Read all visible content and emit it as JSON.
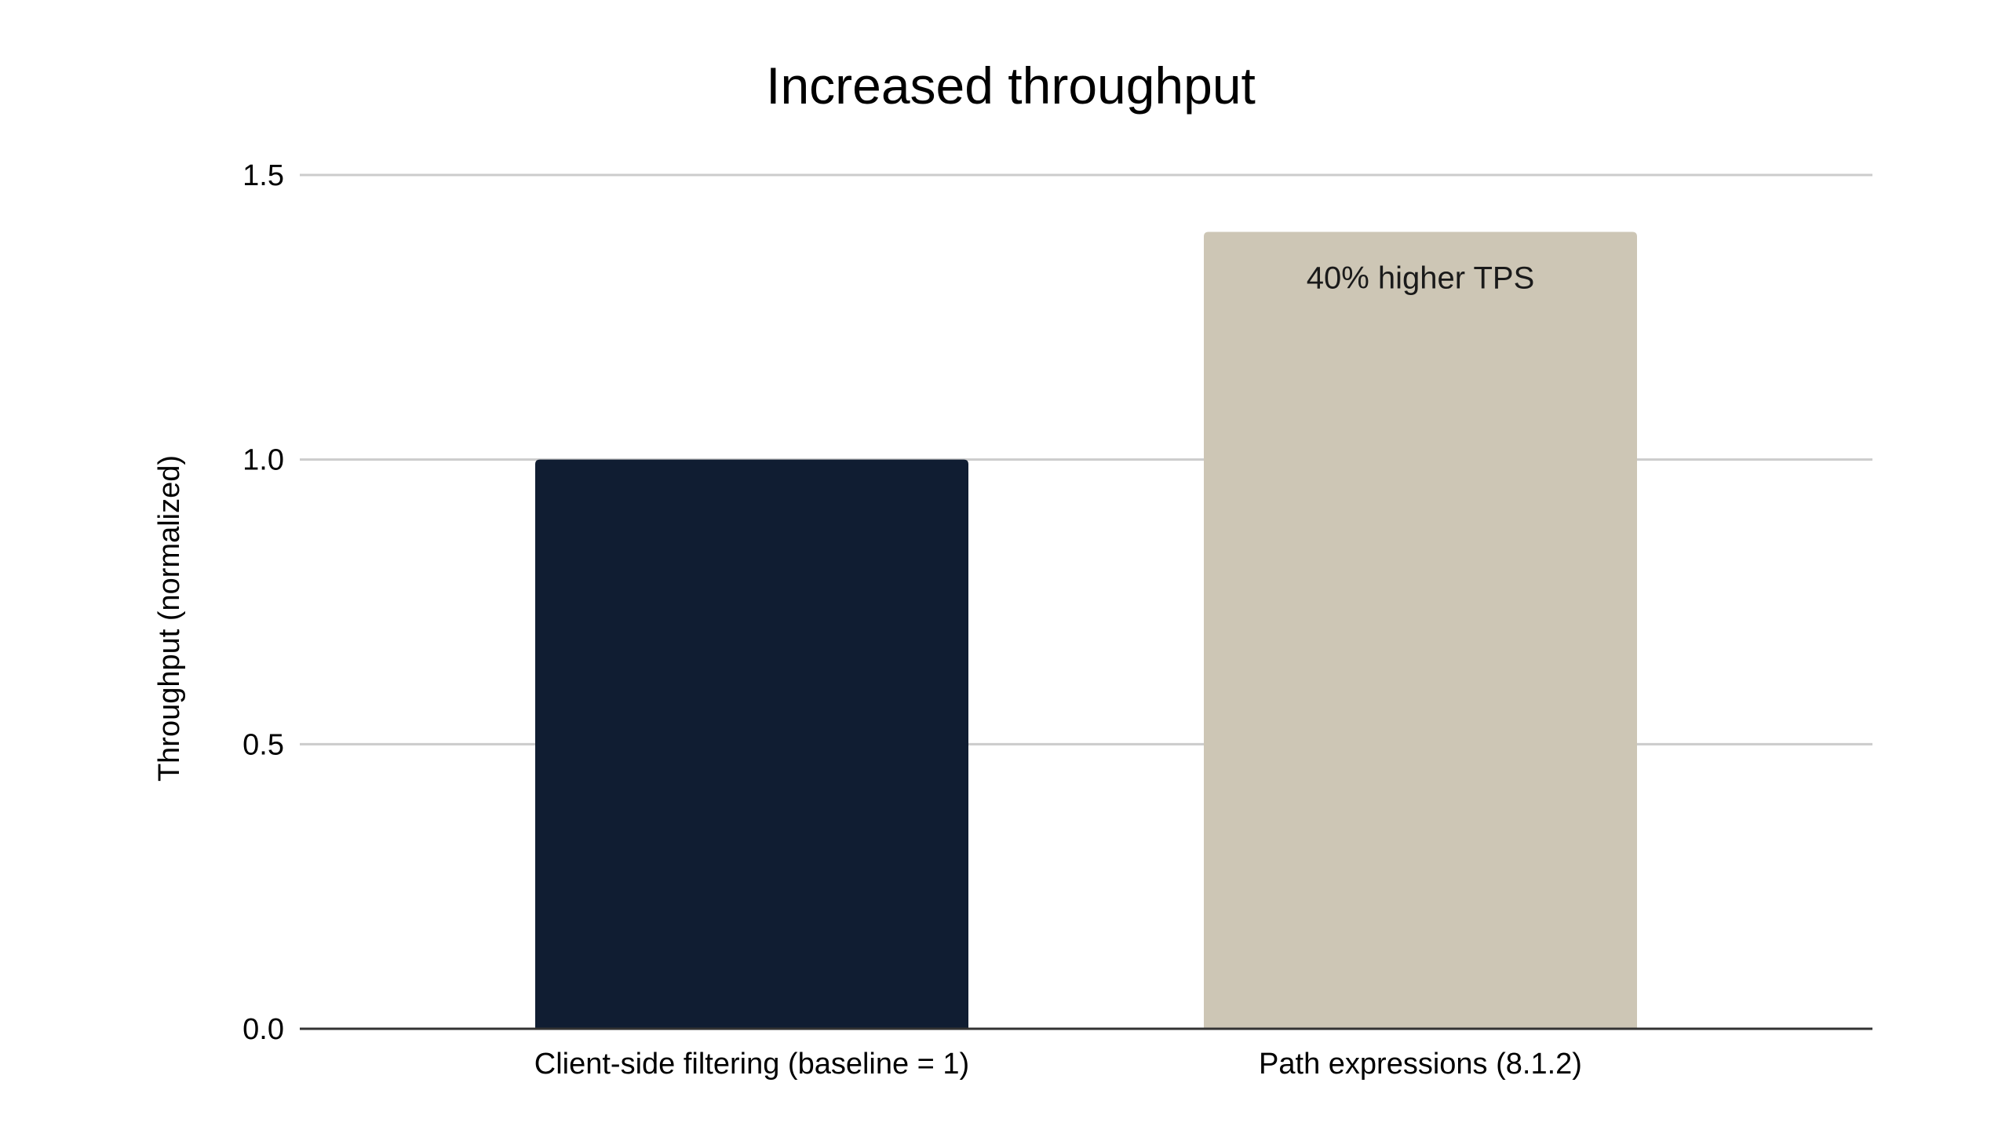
{
  "chart_data": {
    "type": "bar",
    "title": "Increased throughput",
    "xlabel": "",
    "ylabel": "Throughput (normalized)",
    "categories": [
      "Client-side filtering (baseline = 1)",
      "Path expressions (8.1.2)"
    ],
    "values": [
      1.0,
      1.4
    ],
    "bar_colors": [
      "#101d32",
      "#cdc6b5"
    ],
    "ylim": [
      0,
      1.5
    ],
    "yticks": [
      0.0,
      0.5,
      1.0,
      1.5
    ],
    "ytick_labels": [
      "0.0",
      "0.5",
      "1.0",
      "1.5"
    ],
    "grid": true,
    "legend": "none",
    "annotations": [
      {
        "category_index": 1,
        "text": "40% higher TPS"
      }
    ]
  }
}
